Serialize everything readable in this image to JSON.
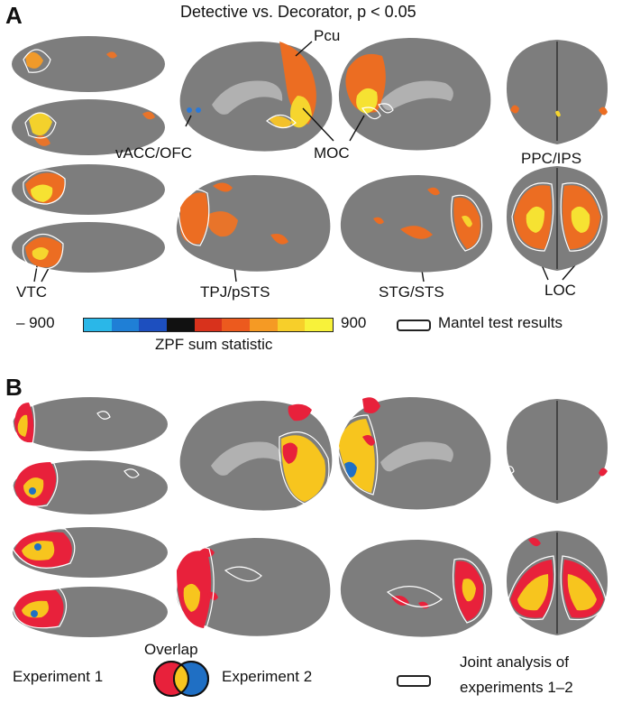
{
  "panel_a": {
    "letter": "A",
    "title": "Detective vs. Decorator, p < 0.05",
    "labels": {
      "pcu": "Pcu",
      "vacc": "vACC/OFC",
      "moc": "MOC",
      "ppc": "PPC/IPS",
      "vtc": "VTC",
      "tpj": "TPJ/pSTS",
      "stg": "STG/STS",
      "loc": "LOC"
    },
    "colorbar": {
      "min_label": "– 900",
      "max_label": "900",
      "caption": "ZPF sum statistic",
      "colors": [
        "#2ab7e8",
        "#1f7fd6",
        "#1d4fbf",
        "#111111",
        "#d8321c",
        "#ec5a1e",
        "#f59a24",
        "#f7cf2a",
        "#f8f23a"
      ]
    },
    "mantel_label": "Mantel test results"
  },
  "panel_b": {
    "letter": "B",
    "overlap_title": "Overlap",
    "exp1_label": "Experiment 1",
    "exp2_label": "Experiment 2",
    "joint_label_line1": "Joint analysis of",
    "joint_label_line2": "experiments 1–2",
    "colors": {
      "exp1": "#e8213b",
      "exp2": "#1f6fc4",
      "overlap": "#f7c51e"
    }
  }
}
